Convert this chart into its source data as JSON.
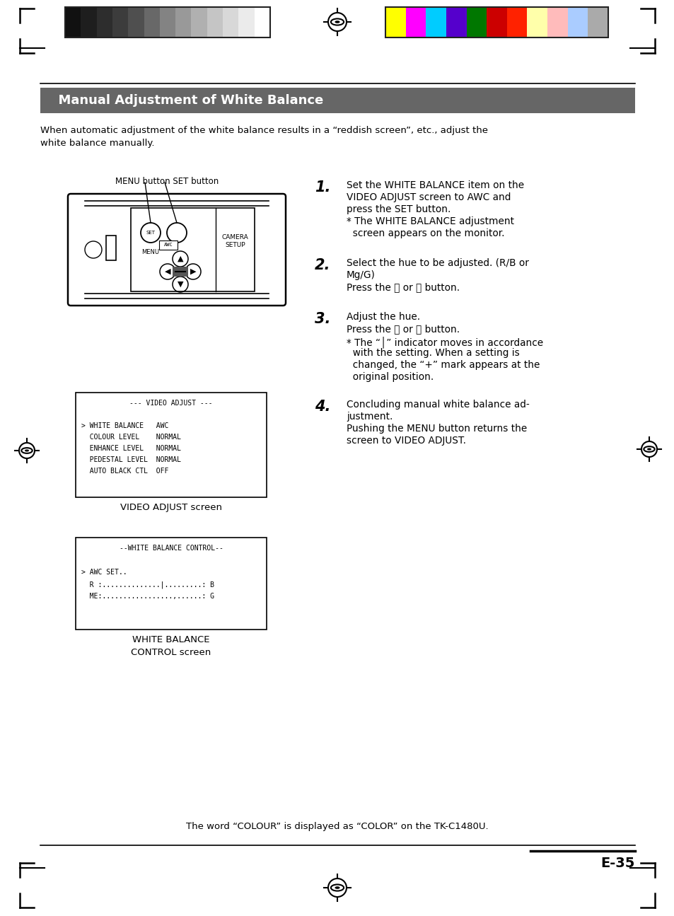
{
  "page_bg": "#ffffff",
  "title_bg": "#666666",
  "title_text": "  Manual Adjustment of White Balance",
  "title_color": "#ffffff",
  "intro_line1": "When automatic adjustment of the white balance results in a “reddish screen”, etc., adjust the",
  "intro_line2": "white balance manually.",
  "grayscale_colors": [
    "#111111",
    "#1e1e1e",
    "#2d2d2d",
    "#3c3c3c",
    "#4f4f4f",
    "#686868",
    "#838383",
    "#999999",
    "#b0b0b0",
    "#c5c5c5",
    "#d8d8d8",
    "#ebebeb",
    "#ffffff"
  ],
  "color_bars": [
    "#ffff00",
    "#ff00ff",
    "#00ccff",
    "#5500cc",
    "#007700",
    "#cc0000",
    "#ff2200",
    "#ffffaa",
    "#ffbbbb",
    "#aaccff",
    "#aaaaaa"
  ],
  "menu_button_label": "MENU button SET button",
  "video_adjust_lines": [
    "--- VIDEO ADJUST ---",
    "",
    "> WHITE BALANCE   AWC",
    "  COLOUR LEVEL    NORMAL",
    "  ENHANCE LEVEL   NORMAL",
    "  PEDESTAL LEVEL  NORMAL",
    "  AUTO BLACK CTL  OFF"
  ],
  "video_adjust_caption": "VIDEO ADJUST screen",
  "wb_control_lines": [
    "--WHITE BALANCE CONTROL--",
    "",
    "> AWC SET..",
    "  R :..............|.........: B",
    "  ME:.................,......: G"
  ],
  "wb_control_caption_line1": "WHITE BALANCE",
  "wb_control_caption_line2": "CONTROL screen",
  "step1_num": "1.",
  "step1_lines": [
    "Set the WHITE BALANCE item on the",
    "VIDEO ADJUST screen to AWC and",
    "press the SET button.",
    "* The WHITE BALANCE adjustment",
    "  screen appears on the monitor."
  ],
  "step2_num": "2.",
  "step2_lines": [
    "Select the hue to be adjusted. (R/B or",
    "Mg/G)",
    "Press the Ⓐ or Ⓗ button."
  ],
  "step3_num": "3.",
  "step3_lines": [
    "Adjust the hue.",
    "Press the Ⓐ or Ⓗ button.",
    "* The “│” indicator moves in accordance",
    "  with the setting. When a setting is",
    "  changed, the “+” mark appears at the",
    "  original position."
  ],
  "step4_num": "4.",
  "step4_lines": [
    "Concluding manual white balance ad-",
    "justment.",
    "Pushing the MENU button returns the",
    "screen to VIDEO ADJUST."
  ],
  "footer_text": "The word “COLOUR” is displayed as “COLOR” on the TK-C1480U.",
  "page_number": "E-35"
}
